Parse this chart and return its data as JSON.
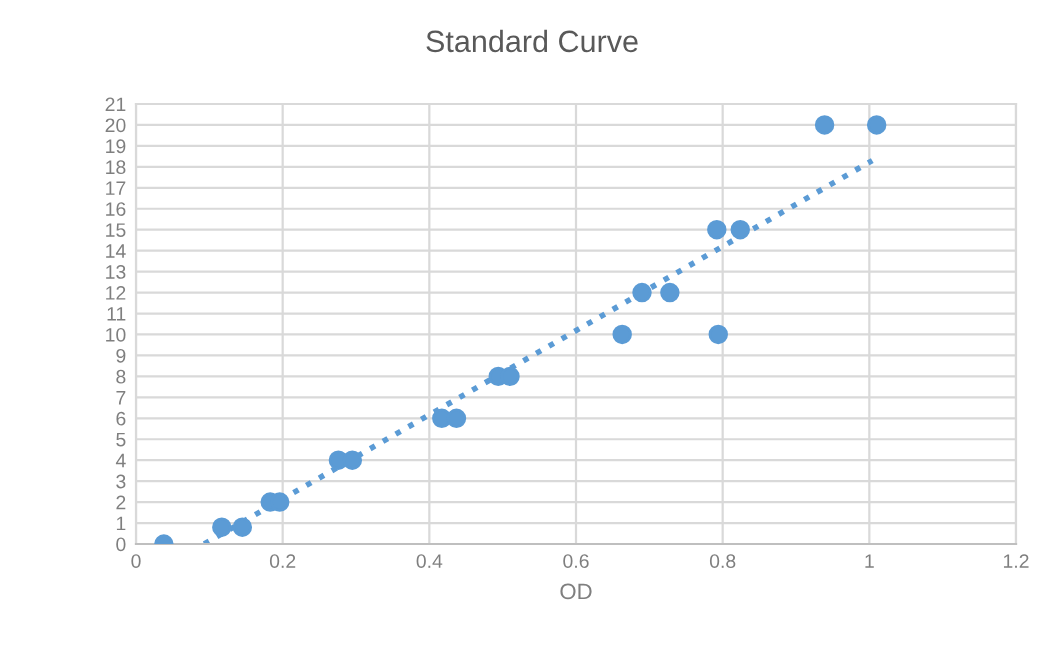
{
  "chart_data": {
    "type": "scatter",
    "title": "Standard Curve",
    "xlabel": "OD",
    "xlim": [
      0,
      1.2
    ],
    "xticks": [
      0,
      0.2,
      0.4,
      0.6,
      0.8,
      1,
      1.2
    ],
    "ylim": [
      0,
      21
    ],
    "yticks": [
      0,
      1,
      2,
      3,
      4,
      5,
      6,
      7,
      8,
      9,
      10,
      11,
      12,
      13,
      14,
      15,
      16,
      17,
      18,
      19,
      20,
      21
    ],
    "grid": true,
    "marker": "circle",
    "legend": false,
    "series": [
      {
        "color": "#5b9bd5",
        "x": [
          0.038,
          0.117,
          0.145,
          0.183,
          0.196,
          0.276,
          0.295,
          0.417,
          0.437,
          0.494,
          0.51,
          0.663,
          0.794,
          0.69,
          0.728,
          0.792,
          0.824,
          0.939,
          1.01
        ],
        "values": [
          0,
          0.8,
          0.8,
          2,
          2,
          4,
          4,
          6,
          6,
          8,
          8,
          10,
          10,
          12,
          12,
          15,
          15,
          20,
          20
        ]
      },
      {
        "type": "line",
        "color": "#5b9bd5",
        "line_style": "dotted",
        "marker": "none",
        "x": [
          0.093,
          1.004
        ],
        "values": [
          0,
          18.3
        ]
      }
    ]
  }
}
